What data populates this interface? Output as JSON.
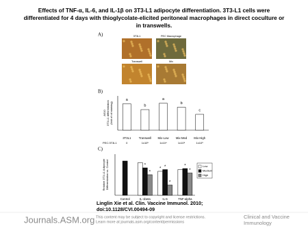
{
  "title_lines": [
    "Effects of TNF-α, IL-6, and IL-1β on 3T3-L1 adipocyte differentiation. 3T3-L1 cells were",
    "differentiated for 4 days with thioglycolate-elicited peritoneal macrophages in direct coculture or",
    "in transwells."
  ],
  "panel_a": {
    "label": "A)",
    "images": [
      {
        "caption": "3T3L1",
        "color": "#b0702a"
      },
      {
        "caption": "PEC Macrophage",
        "color": "#6e6a3c"
      },
      {
        "caption": "Transwell",
        "color": "#c2842e"
      },
      {
        "caption": "Mix",
        "color": "#a87a34"
      }
    ]
  },
  "panel_b": {
    "label": "B)",
    "type": "bar",
    "y_label_lines": [
      "A510",
      "3T3-L1 differentiation",
      "(fold of oil staining)"
    ],
    "categories": [
      "3T3L1",
      "Transwell",
      "Mix-Low",
      "Mix-Med",
      "Mix-High"
    ],
    "row_label": "PEC:3T3L1",
    "row_values": [
      "0",
      "1x10⁵",
      "1x10⁴",
      "1x10⁵",
      "1x10⁶"
    ],
    "values": [
      1.0,
      0.78,
      1.02,
      0.87,
      0.6
    ],
    "letters": [
      "a",
      "b",
      "a",
      "b",
      "c"
    ],
    "ylim": [
      0,
      1.3
    ],
    "color": "#ffffff"
  },
  "panel_c": {
    "label": "C)",
    "type": "bar",
    "y_label_lines": [
      "Relative 3T3-L1 Adipocyte",
      "Differentiation vs. Control"
    ],
    "categories": [
      "Control",
      "IL-1beta",
      "IL-6",
      "TNF-alpha"
    ],
    "series": [
      {
        "name": "Low",
        "color": "#ffffff",
        "values": [
          null,
          0.95,
          0.7,
          0.75
        ]
      },
      {
        "name": "Medium",
        "color": "#111111",
        "values": [
          1.0,
          0.8,
          0.75,
          0.78
        ]
      },
      {
        "name": "High",
        "color": "#888888",
        "values": [
          null,
          0.6,
          0.3,
          0.65
        ]
      }
    ],
    "annotations": [
      {
        "text": "*",
        "category": 1,
        "series": 1
      },
      {
        "text": "*",
        "category": 1,
        "series": 2
      },
      {
        "text": "*",
        "category": 2,
        "series": 0
      },
      {
        "text": "*",
        "category": 2,
        "series": 1
      },
      {
        "text": "*",
        "category": 2,
        "series": 2
      },
      {
        "text": "*",
        "category": 3,
        "series": 1
      },
      {
        "text": "*",
        "category": 3,
        "series": 2
      }
    ],
    "ylim": [
      0,
      1.2
    ]
  },
  "citation_lines": [
    "Linglin Xie et al. Clin. Vaccine Immunol. 2010;",
    "doi:10.1128/CVI.00494-09"
  ],
  "footer": {
    "logo": "Journals.ASM.org",
    "notice_lines": [
      "This content may be subject to copyright and license restrictions.",
      "Learn more at journals.asm.org/content/permissions"
    ],
    "journal_lines": [
      "Clinical and Vaccine",
      "Immunology"
    ]
  }
}
